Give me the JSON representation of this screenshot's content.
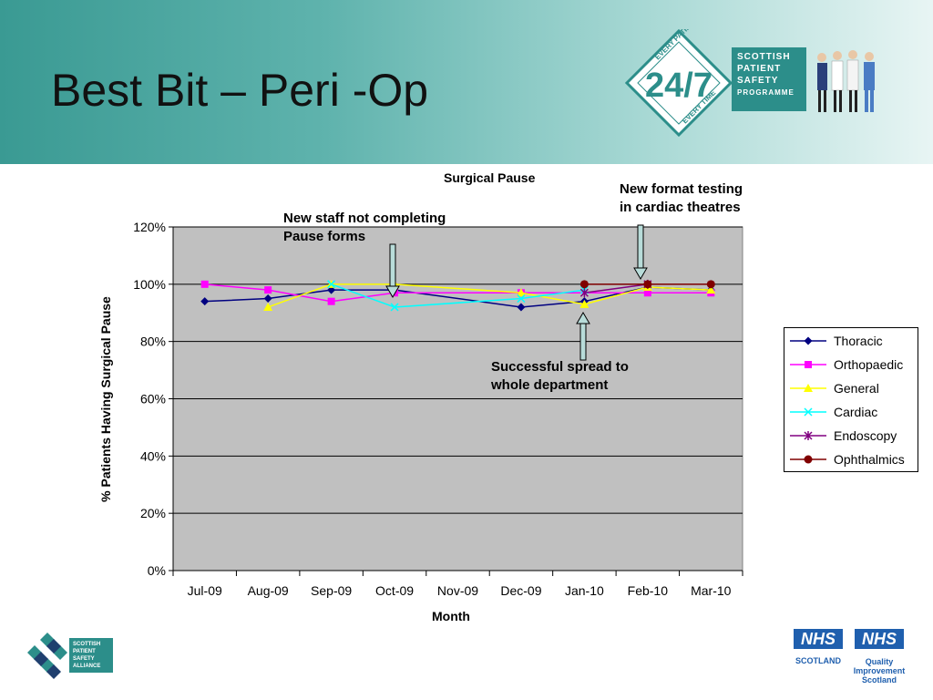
{
  "header": {
    "title": "Best Bit – Peri -Op",
    "badge_top": "EVERY PATIENT",
    "badge_number": "24/7",
    "badge_bottom": "EVERY TIME",
    "programme_lines": [
      "SCOTTISH",
      "PATIENT",
      "SAFETY",
      "PROGRAMME"
    ]
  },
  "annotations": {
    "staff_1": "New staff not completing",
    "staff_2": "Pause forms",
    "format_1": "New format testing",
    "format_2": "in cardiac theatres",
    "spread_1": "Successful spread to",
    "spread_2": "whole department"
  },
  "footer": {
    "alliance_lines": [
      "SCOTTISH",
      "PATIENT",
      "SAFETY",
      "ALLIANCE"
    ],
    "nhs_1": "NHS",
    "nhs_1_sub": "SCOTLAND",
    "nhs_2": "NHS",
    "nhs_2_sub_1": "Quality",
    "nhs_2_sub_2": "Improvement",
    "nhs_2_sub_3": "Scotland"
  },
  "colors": {
    "plot_bg": "#c0c0c0",
    "header_teal": "#3a9a93"
  },
  "chart_data": {
    "type": "line",
    "title": "Surgical Pause",
    "xlabel": "Month",
    "ylabel": "% Patients Having Surgical Pause",
    "ylim": [
      0,
      1.2
    ],
    "yticks": [
      "0%",
      "20%",
      "40%",
      "60%",
      "80%",
      "100%",
      "120%"
    ],
    "grid": true,
    "legend_position": "right",
    "categories": [
      "Jul-09",
      "Aug-09",
      "Sep-09",
      "Oct-09",
      "Nov-09",
      "Dec-09",
      "Jan-10",
      "Feb-10",
      "Mar-10"
    ],
    "series": [
      {
        "name": "Thoracic",
        "color": "#000080",
        "marker": "diamond",
        "values": [
          0.94,
          0.95,
          0.98,
          0.98,
          null,
          0.92,
          0.94,
          0.99,
          0.98
        ]
      },
      {
        "name": "Orthopaedic",
        "color": "#ff00ff",
        "marker": "square",
        "values": [
          1.0,
          0.98,
          0.94,
          0.97,
          null,
          0.97,
          null,
          0.97,
          0.97
        ]
      },
      {
        "name": "General",
        "color": "#ffff00",
        "marker": "triangle",
        "values": [
          null,
          0.92,
          1.0,
          1.0,
          null,
          0.97,
          0.93,
          0.99,
          0.98
        ]
      },
      {
        "name": "Cardiac",
        "color": "#00ffff",
        "marker": "x",
        "values": [
          null,
          null,
          1.0,
          0.92,
          null,
          0.95,
          0.98,
          null,
          null
        ]
      },
      {
        "name": "Endoscopy",
        "color": "#800080",
        "marker": "star",
        "values": [
          null,
          null,
          null,
          null,
          null,
          null,
          0.97,
          1.0,
          null
        ]
      },
      {
        "name": "Ophthalmics",
        "color": "#800000",
        "marker": "circle",
        "values": [
          null,
          null,
          null,
          null,
          null,
          null,
          1.0,
          1.0,
          1.0
        ]
      }
    ]
  }
}
